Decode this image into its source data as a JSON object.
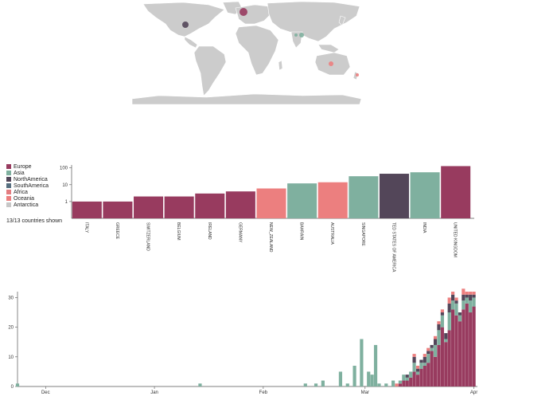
{
  "colors": {
    "Europe": "#983b5f",
    "Asia": "#7fb09f",
    "NorthAmerica": "#534659",
    "SouthAmerica": "#566e7f",
    "Africa": "#e37c80",
    "Oceania": "#ec7f7f",
    "Antarctica": "#c7c7c7",
    "land": "#cccccc"
  },
  "legend": [
    {
      "name": "Europe"
    },
    {
      "name": "Asia"
    },
    {
      "name": "NorthAmerica"
    },
    {
      "name": "SouthAmerica"
    },
    {
      "name": "Africa"
    },
    {
      "name": "Oceania"
    },
    {
      "name": "Antarctica"
    }
  ],
  "countries_shown": "13/13 countries shown",
  "map_markers": [
    {
      "label": "UNITED KINGDOM",
      "region": "Europe"
    },
    {
      "label": "UNITED STATES OF AMERICA",
      "region": "NorthAmerica"
    },
    {
      "label": "INDIA",
      "region": "Asia"
    },
    {
      "label": "SINGAPORE",
      "region": "Asia"
    },
    {
      "label": "AUSTRALIA",
      "region": "Oceania"
    },
    {
      "label": "NEW ZEALAND",
      "region": "Oceania"
    }
  ],
  "chart_data": [
    {
      "type": "bar",
      "scale": "log",
      "categories": [
        "ITALY",
        "GREECE",
        "SWITZERLAND",
        "BELGIUM",
        "IRELAND",
        "GERMANY",
        "NEW_ZEALAND",
        "BAHRAIN",
        "AUSTRALIA",
        "SINGAPORE",
        "TED STATES OF AMERICA",
        "INDIA",
        "UNITED KINGDOM"
      ],
      "regions": [
        "Europe",
        "Europe",
        "Europe",
        "Europe",
        "Europe",
        "Europe",
        "Oceania",
        "Asia",
        "Oceania",
        "Asia",
        "NorthAmerica",
        "Asia",
        "Europe"
      ],
      "values": [
        1,
        1,
        2,
        2,
        3,
        4,
        6,
        12,
        14,
        32,
        45,
        55,
        128
      ],
      "yticks": [
        1,
        10,
        100
      ],
      "ytick_labels": [
        "1",
        "10",
        "100"
      ],
      "ylim": [
        0.1,
        150
      ]
    },
    {
      "type": "bar",
      "stacked": true,
      "xticks": [
        "Dec",
        "Jan",
        "Feb",
        "Mar",
        "Apr"
      ],
      "xtick_days": [
        8,
        39,
        70,
        99,
        130
      ],
      "yticks": [
        0,
        10,
        20,
        30
      ],
      "ylim": [
        0,
        32
      ],
      "series_regions": [
        "Europe",
        "Asia",
        "NorthAmerica",
        "Oceania"
      ],
      "days": [
        0,
        103,
        104,
        105,
        106,
        107,
        108,
        109,
        110,
        111,
        112,
        113,
        114,
        115,
        116,
        117,
        118,
        119,
        120,
        121,
        122,
        123,
        124,
        125,
        126,
        127,
        128,
        129,
        130
      ],
      "series": [
        {
          "region": "Europe",
          "values": [
            0,
            0,
            0,
            0,
            0,
            0,
            0,
            1,
            2,
            2,
            3,
            5,
            4,
            6,
            7,
            8,
            12,
            10,
            14,
            20,
            15,
            19,
            26,
            24,
            22,
            26,
            28,
            25,
            27
          ]
        },
        {
          "region": "Asia",
          "values": [
            1,
            1,
            0,
            1,
            0,
            2,
            0,
            1,
            2,
            1,
            2,
            3,
            1,
            2,
            1,
            3,
            1,
            4,
            5,
            4,
            1,
            6,
            3,
            4,
            2,
            3,
            2,
            4,
            3
          ]
        },
        {
          "region": "NorthAmerica",
          "values": [
            0,
            0,
            0,
            0,
            0,
            0,
            0,
            0,
            0,
            1,
            0,
            2,
            1,
            1,
            2,
            1,
            1,
            2,
            2,
            1,
            2,
            3,
            2,
            1,
            1,
            2,
            1,
            2,
            1
          ]
        },
        {
          "region": "Oceania",
          "values": [
            0,
            0,
            0,
            0,
            0,
            0,
            1,
            0,
            0,
            0,
            0,
            1,
            1,
            0,
            1,
            1,
            0,
            1,
            1,
            1,
            0,
            2,
            1,
            1,
            0,
            2,
            1,
            1,
            1
          ]
        }
      ],
      "extra_days": [
        52,
        82,
        85,
        87,
        92,
        94,
        96,
        98,
        100,
        101,
        102
      ],
      "extra_values": [
        1,
        1,
        1,
        2,
        5,
        1,
        7,
        16,
        5,
        4,
        14
      ],
      "extra_regions": [
        "Asia",
        "Asia",
        "Asia",
        "Asia",
        "Asia",
        "Asia",
        "Asia",
        "Asia",
        "Asia",
        "Asia",
        "Asia"
      ]
    }
  ]
}
